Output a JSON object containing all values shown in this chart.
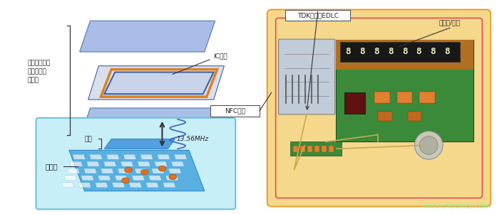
{
  "bg_color": "#ffffff",
  "watermark": "www.cntronics.com",
  "watermark_color": "#90ee90",
  "smart_card_label": "搞载显示器的\n下一代型号\n智能卡",
  "ic_chip_label": "IC芯片",
  "nfc_antenna_label": "NFC天线",
  "tdk_edlc_label": "TDK超薄型EDLC",
  "display_module_label": "显示器/模块",
  "reader_label": "读写器",
  "antenna_label": "天线",
  "freq_label": "13.56MHz",
  "outer_box_color": "#f5d88c",
  "outer_box_border": "#e8a030",
  "inner_border_color": "#e05050",
  "reader_box_color": "#c8eef8",
  "reader_box_border": "#70c0e0",
  "card_top_color": "#aabce8",
  "card_bottom_color": "#a8c0e8",
  "coil_orange": "#e08020",
  "coil_blue": "#4060a0",
  "pcb_green": "#3a8a3a",
  "pcb_brown": "#b07020",
  "display_bg": "#181818",
  "display_seg": "#f0f0c0",
  "arrow_color": "#333333",
  "wave_color": "#4060c0",
  "trace_color": "#c8a850"
}
